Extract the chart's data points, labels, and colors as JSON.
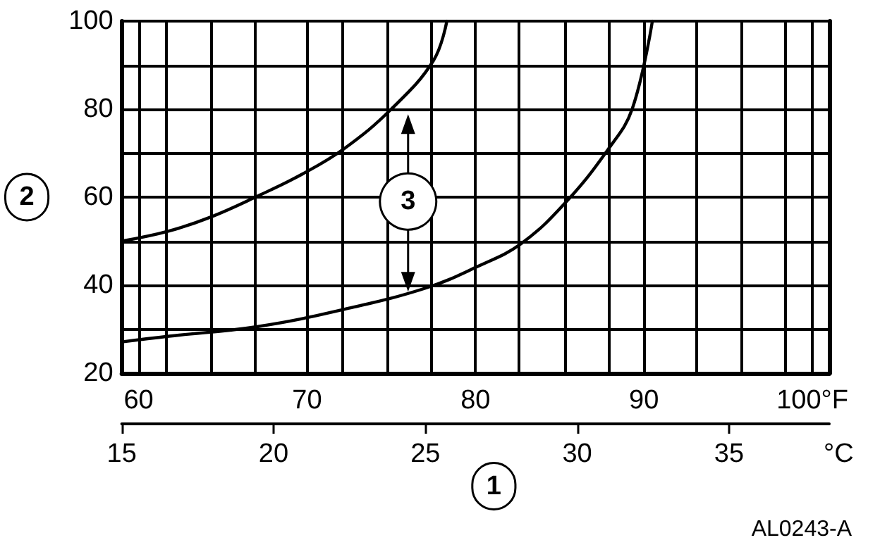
{
  "chart_data": {
    "type": "line",
    "xlabel": "1",
    "ylabel": "2",
    "x2label": "°C",
    "annotations": [
      {
        "text": "3",
        "x": 76,
        "y": 59
      },
      "AL0243-A"
    ],
    "xlim": [
      59,
      101
    ],
    "xticks": [
      {
        "value": 59,
        "label": null
      },
      {
        "value": 60,
        "label": "60"
      },
      {
        "value": 61.6,
        "label": null
      },
      {
        "value": 64.3,
        "label": null
      },
      {
        "value": 66.9,
        "label": null
      },
      {
        "value": 70,
        "label": "70"
      },
      {
        "value": 72.1,
        "label": null
      },
      {
        "value": 74.8,
        "label": null
      },
      {
        "value": 77.4,
        "label": null
      },
      {
        "value": 80,
        "label": "80"
      },
      {
        "value": 82.6,
        "label": null
      },
      {
        "value": 85.3,
        "label": null
      },
      {
        "value": 87.9,
        "label": null
      },
      {
        "value": 90,
        "label": "90"
      },
      {
        "value": 93.1,
        "label": null
      },
      {
        "value": 95.8,
        "label": null
      },
      {
        "value": 98.4,
        "label": null
      },
      {
        "value": 100,
        "label": "100°F"
      },
      {
        "value": 101,
        "label": null
      }
    ],
    "x2lim": [
      15,
      38.3
    ],
    "x2ticks": [
      15,
      20,
      25,
      30,
      35
    ],
    "ylim": [
      20,
      100
    ],
    "yticks": [
      20,
      {
        "value": 30,
        "label": null
      },
      40,
      {
        "value": 50,
        "label": null
      },
      60,
      {
        "value": 70,
        "label": null
      },
      80,
      {
        "value": 90,
        "label": null
      },
      100
    ],
    "grid": true,
    "marker": "none",
    "line_style": "solid",
    "series": [
      {
        "color": "#000000",
        "x": [
          59,
          61.8,
          64.3,
          67.1,
          69.7,
          72.2,
          75,
          77.5,
          78.3
        ],
        "values": [
          50,
          52.3,
          55.5,
          60.3,
          65.2,
          71,
          80,
          91,
          100
        ]
      },
      {
        "color": "#000000",
        "x": [
          59,
          61.8,
          67.1,
          72.2,
          77.1,
          80.1,
          82.7,
          85.4,
          87.9,
          89.3,
          90.5
        ],
        "values": [
          27.1,
          28.4,
          30.6,
          34.5,
          39.4,
          44.2,
          49.4,
          59,
          71,
          80,
          100
        ]
      }
    ]
  }
}
